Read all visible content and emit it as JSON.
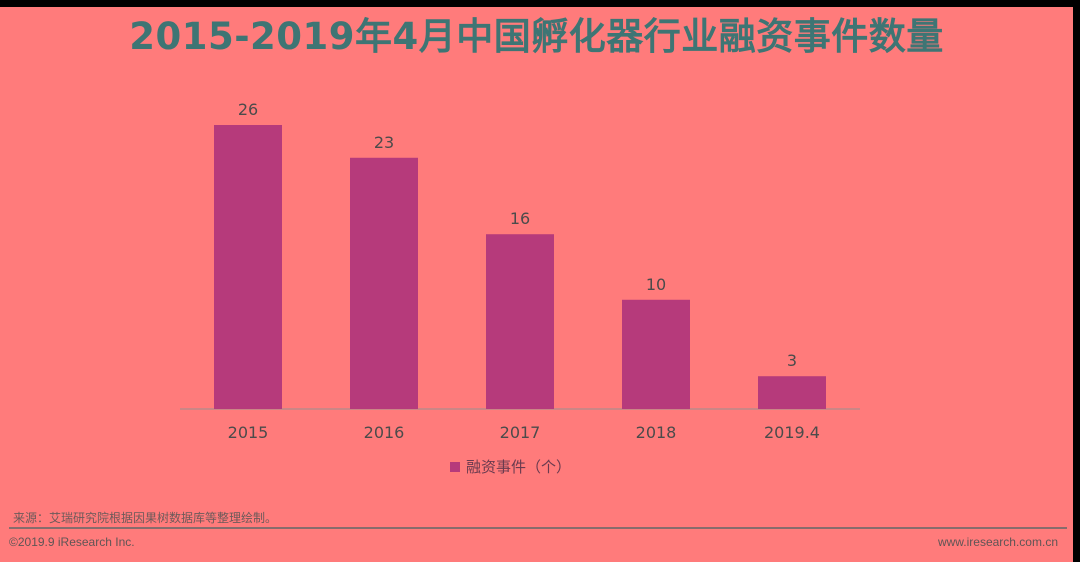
{
  "title": "2015-2019年4月中国孵化器行业融资事件数量",
  "source_text": "来源：艾瑞研究院根据因果树数据库等整理绘制。",
  "footer": {
    "copyright": "©2019.9 iResearch Inc.",
    "website": "www.iresearch.com.cn"
  },
  "colors": {
    "background": "#ff7b7b",
    "bar": "#b63a7b",
    "title": "#3e7574"
  },
  "chart_data": {
    "type": "bar",
    "categories": [
      "2015",
      "2016",
      "2017",
      "2018",
      "2019.4"
    ],
    "series": [
      {
        "name": "融资事件（个）",
        "values": [
          26,
          23,
          16,
          10,
          3
        ]
      }
    ],
    "title": "2015-2019年4月中国孵化器行业融资事件数量",
    "xlabel": "",
    "ylabel": "",
    "ylim": [
      0,
      26
    ],
    "grid": false,
    "legend": "bottom-center",
    "data_labels": true
  }
}
